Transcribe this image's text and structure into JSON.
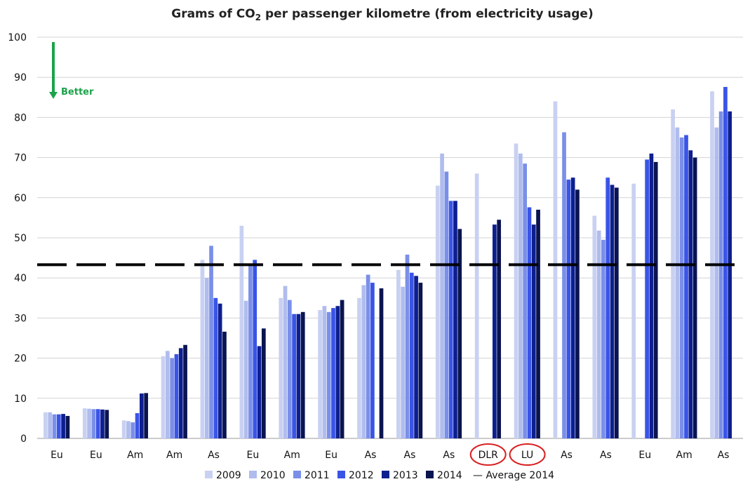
{
  "chart_data": {
    "type": "bar",
    "title_prefix": "Grams of CO",
    "title_sub": "2",
    "title_suffix": " per passenger kilometre (from electricity usage)",
    "ylim": [
      0,
      100
    ],
    "yticks": [
      0,
      10,
      20,
      30,
      40,
      50,
      60,
      70,
      80,
      90,
      100
    ],
    "categories": [
      "Eu",
      "Eu",
      "Am",
      "Am",
      "As",
      "Eu",
      "Am",
      "Eu",
      "As",
      "As",
      "As",
      "DLR",
      "LU",
      "As",
      "As",
      "Eu",
      "Am",
      "As"
    ],
    "highlighted_categories": [
      "DLR",
      "LU"
    ],
    "series": [
      {
        "name": "2009",
        "color": "#c9d1f2",
        "values": [
          6.5,
          7.5,
          4.5,
          20.5,
          44.5,
          53,
          35,
          32,
          35,
          42,
          63,
          66,
          73.5,
          84,
          55.5,
          63.5,
          82,
          86.5
        ]
      },
      {
        "name": "2010",
        "color": "#b0bced",
        "values": [
          6.5,
          7.4,
          4.3,
          21.8,
          40,
          34.3,
          38,
          33,
          38.2,
          37.8,
          71,
          null,
          71,
          null,
          51.8,
          null,
          77.5,
          77.5
        ]
      },
      {
        "name": "2011",
        "color": "#7a8fe8",
        "values": [
          6,
          7.3,
          4,
          20,
          48,
          43,
          34.5,
          31.5,
          40.8,
          45.8,
          66.5,
          null,
          68.5,
          76.3,
          49.5,
          null,
          75,
          81.5
        ]
      },
      {
        "name": "2012",
        "color": "#3a54e6",
        "values": [
          6,
          7.3,
          6.3,
          21,
          35,
          44.5,
          31,
          32.5,
          38.8,
          41.3,
          59.2,
          null,
          57.6,
          64.5,
          65,
          69.5,
          75.6,
          87.6
        ]
      },
      {
        "name": "2013",
        "color": "#0d1f8f",
        "values": [
          6.1,
          7.2,
          11.2,
          22.5,
          33.6,
          23,
          31,
          33,
          null,
          40.5,
          59.2,
          53.3,
          53.3,
          65,
          63.2,
          71,
          71.8,
          81.5
        ]
      },
      {
        "name": "2014",
        "color": "#0a1450",
        "values": [
          5.6,
          7.1,
          11.3,
          23.3,
          26.6,
          27.4,
          31.5,
          34.5,
          37.4,
          38.8,
          52.2,
          54.5,
          57,
          62,
          62.5,
          68.9,
          70,
          null
        ]
      }
    ],
    "average_2014": {
      "name": "Average 2014",
      "legend_label": "— Average 2014",
      "value": 43.3,
      "style": "dashed",
      "color": "#000000"
    },
    "annotation": {
      "text": "Better",
      "color": "#1aa34a",
      "arrow": "down"
    },
    "legend_position": "bottom",
    "grid": true
  }
}
